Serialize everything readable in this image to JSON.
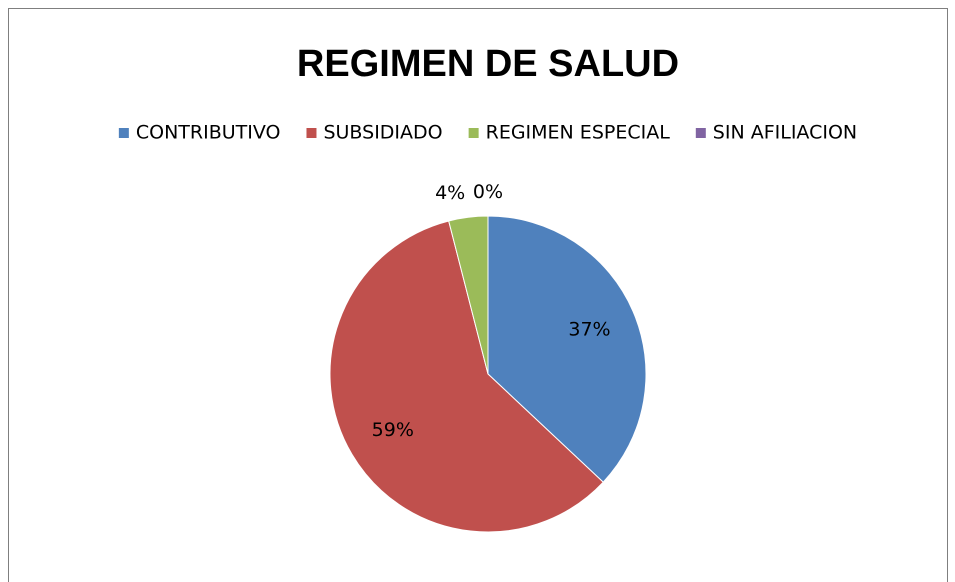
{
  "chart_data": {
    "type": "pie",
    "title": "REGIMEN DE SALUD",
    "categories": [
      "CONTRIBUTIVO",
      "SUBSIDIADO",
      "REGIMEN ESPECIAL",
      "SIN AFILIACION"
    ],
    "values": [
      37,
      59,
      4,
      0
    ],
    "value_labels": [
      "37%",
      "59%",
      "4%",
      "0%"
    ],
    "colors": [
      "#4f81bd",
      "#c0504d",
      "#9bbb59",
      "#8064a2"
    ],
    "legend": "top"
  }
}
